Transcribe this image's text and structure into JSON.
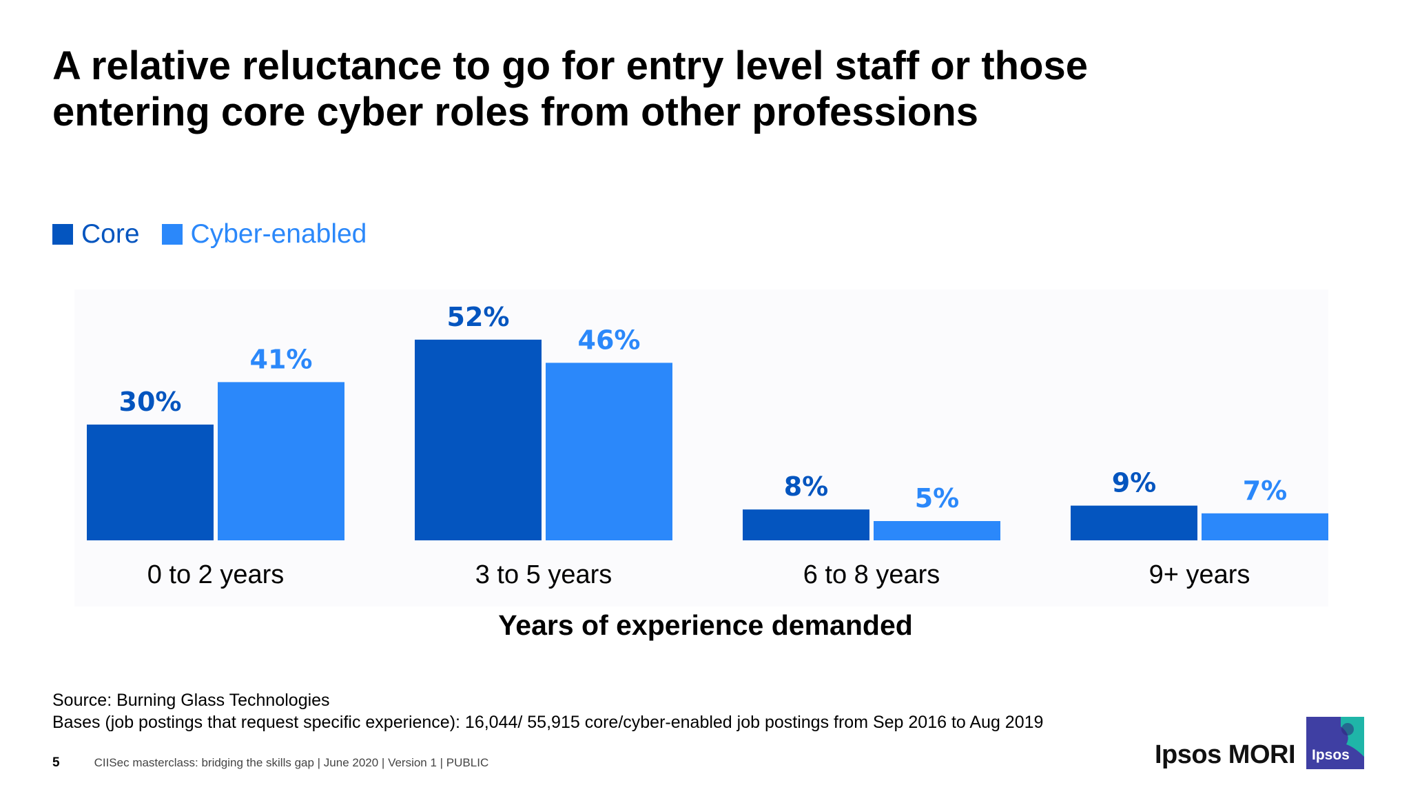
{
  "slide": {
    "title_line1": "A relative reluctance to go for entry level staff or those",
    "title_line2": "entering core cyber roles from other professions",
    "source_line1": "Source: Burning Glass Technologies",
    "source_line2": "Bases (job postings that request specific experience): 16,044/ 55,915 core/cyber-enabled job postings from Sep 2016 to Aug 2019",
    "page_number": "5",
    "footer_text": "CIISec masterclass: bridging the skills gap | June 2020 | Version 1 | PUBLIC",
    "brand_name": "Ipsos MORI",
    "logo_text": "Ipsos"
  },
  "colors": {
    "core": "#0455BF",
    "cyber_enabled": "#2B88FA",
    "logo_dark": "#3F3FA3",
    "logo_teal": "#1FB5A8"
  },
  "chart_data": {
    "type": "bar",
    "title": "",
    "xlabel": "Years of experience demanded",
    "ylabel": "",
    "ylim": [
      0,
      60
    ],
    "grid": false,
    "legend": "top-left",
    "categories": [
      "0 to 2 years",
      "3 to 5 years",
      "6 to 8 years",
      "9+ years"
    ],
    "series": [
      {
        "name": "Core",
        "values": [
          30,
          52,
          8,
          9
        ],
        "labels": [
          "30%",
          "52%",
          "8%",
          "9%"
        ]
      },
      {
        "name": "Cyber-enabled",
        "values": [
          41,
          46,
          5,
          7
        ],
        "labels": [
          "41%",
          "46%",
          "5%",
          "7%"
        ]
      }
    ]
  }
}
